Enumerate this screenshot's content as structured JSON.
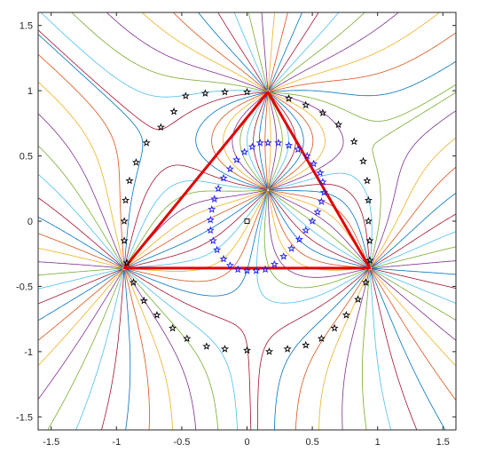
{
  "chart_data": {
    "type": "line",
    "xlim": [
      -1.6,
      1.6
    ],
    "ylim": [
      -1.6,
      1.6
    ],
    "grid": false,
    "legend": "none",
    "x_ticks": [
      -1.5,
      -1,
      -0.5,
      0,
      0.5,
      1,
      1.5
    ],
    "y_ticks": [
      1.5,
      1,
      0.5,
      0,
      -0.5,
      -1,
      -1.5
    ],
    "x_tick_labels": [
      "-1.5",
      "-1",
      "-0.5",
      "0",
      "0.5",
      "1",
      "1.5"
    ],
    "y_tick_labels": [
      "1.5",
      "1",
      "0.5",
      "0",
      "-0.5",
      "-1",
      "-1.5"
    ],
    "nodes": [
      {
        "x": 0.16,
        "y": 0.99
      },
      {
        "x": -0.94,
        "y": -0.36
      },
      {
        "x": 0.94,
        "y": -0.36
      },
      {
        "x": 0.16,
        "y": 0.24
      }
    ],
    "triangle": [
      [
        0.16,
        0.99
      ],
      [
        -0.94,
        -0.36
      ],
      [
        0.94,
        -0.36
      ]
    ],
    "center_marker": {
      "x": 0.0,
      "y": 0.0
    },
    "inner_stars": [
      [
        0.16,
        0.6
      ],
      [
        0.24,
        0.6
      ],
      [
        0.32,
        0.58
      ],
      [
        0.39,
        0.55
      ],
      [
        0.46,
        0.5
      ],
      [
        0.51,
        0.44
      ],
      [
        0.56,
        0.37
      ],
      [
        0.58,
        0.3
      ],
      [
        0.59,
        0.22
      ],
      [
        0.57,
        0.15
      ],
      [
        0.54,
        0.07
      ],
      [
        0.5,
        -0.0
      ],
      [
        0.45,
        -0.07
      ],
      [
        0.4,
        -0.14
      ],
      [
        0.34,
        -0.21
      ],
      [
        0.28,
        -0.27
      ],
      [
        0.21,
        -0.33
      ],
      [
        0.14,
        -0.37
      ],
      [
        0.07,
        -0.38
      ],
      [
        -0.0,
        -0.38
      ],
      [
        -0.07,
        -0.37
      ],
      [
        -0.13,
        -0.34
      ],
      [
        -0.18,
        -0.29
      ],
      [
        -0.23,
        -0.22
      ],
      [
        -0.26,
        -0.15
      ],
      [
        -0.28,
        -0.07
      ],
      [
        -0.28,
        0.01
      ],
      [
        -0.27,
        0.09
      ],
      [
        -0.25,
        0.17
      ],
      [
        -0.22,
        0.25
      ],
      [
        -0.18,
        0.33
      ],
      [
        -0.13,
        0.4
      ],
      [
        -0.08,
        0.47
      ],
      [
        -0.02,
        0.53
      ],
      [
        0.04,
        0.57
      ],
      [
        0.1,
        0.6
      ]
    ],
    "outer_stars": [
      [
        -0.47,
        0.96
      ],
      [
        -0.32,
        0.98
      ],
      [
        -0.17,
        0.99
      ],
      [
        0.0,
        0.99
      ],
      [
        0.32,
        0.94
      ],
      [
        0.45,
        0.89
      ],
      [
        0.58,
        0.83
      ],
      [
        0.7,
        0.74
      ],
      [
        0.82,
        0.61
      ],
      [
        0.89,
        0.46
      ],
      [
        0.92,
        0.31
      ],
      [
        0.93,
        0.16
      ],
      [
        0.93,
        0.0
      ],
      [
        0.94,
        -0.15
      ],
      [
        0.94,
        -0.3
      ],
      [
        0.91,
        -0.47
      ],
      [
        0.85,
        -0.6
      ],
      [
        0.76,
        -0.72
      ],
      [
        0.67,
        -0.82
      ],
      [
        0.57,
        -0.9
      ],
      [
        0.45,
        -0.95
      ],
      [
        0.31,
        -0.98
      ],
      [
        0.17,
        -1.0
      ],
      [
        0.0,
        -0.99
      ],
      [
        -0.17,
        -0.98
      ],
      [
        -0.31,
        -0.96
      ],
      [
        -0.46,
        -0.9
      ],
      [
        -0.57,
        -0.82
      ],
      [
        -0.69,
        -0.72
      ],
      [
        -0.79,
        -0.61
      ],
      [
        -0.87,
        -0.47
      ],
      [
        -0.92,
        -0.32
      ],
      [
        -0.94,
        -0.15
      ],
      [
        -0.94,
        0.0
      ],
      [
        -0.93,
        0.16
      ],
      [
        -0.9,
        0.31
      ],
      [
        -0.85,
        0.45
      ],
      [
        -0.77,
        0.6
      ],
      [
        -0.66,
        0.72
      ],
      [
        -0.56,
        0.84
      ]
    ],
    "streamline_count": 40
  }
}
